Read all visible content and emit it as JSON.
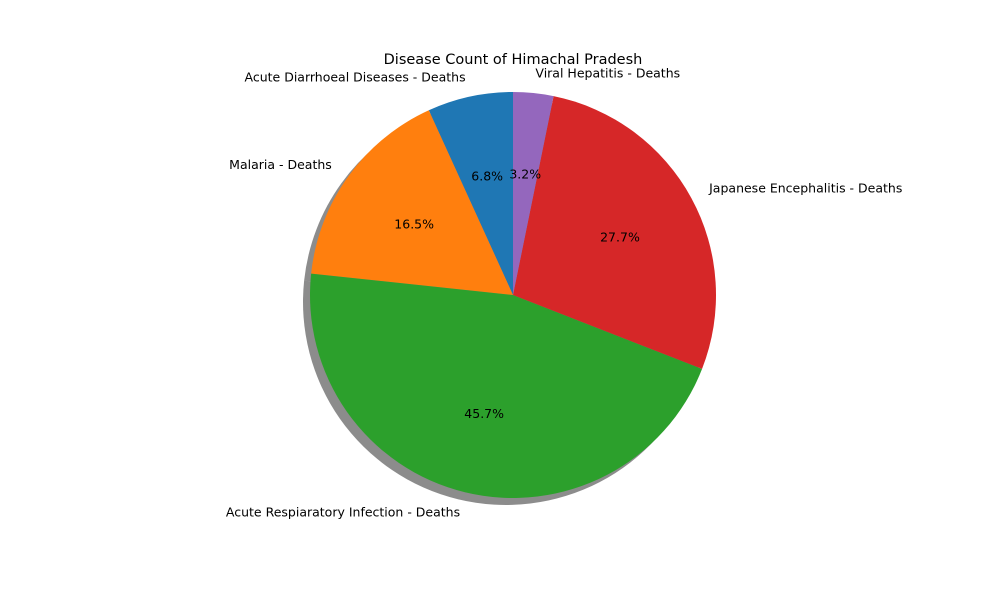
{
  "chart_data": {
    "type": "pie",
    "title": "Disease Count of Himachal Pradesh",
    "shadow": true,
    "start_angle_deg": 90,
    "direction": "counterclockwise",
    "slices": [
      {
        "label": "Acute Diarrhoeal Diseases - Deaths",
        "value": 6.8,
        "pct_label": "6.8%",
        "color": "#1f77b4"
      },
      {
        "label": "Malaria - Deaths",
        "value": 16.5,
        "pct_label": "16.5%",
        "color": "#ff7f0e"
      },
      {
        "label": "Acute Respiaratory Infection - Deaths",
        "value": 45.7,
        "pct_label": "45.7%",
        "color": "#2ca02c"
      },
      {
        "label": "Japanese Encephalitis - Deaths",
        "value": 27.7,
        "pct_label": "27.7%",
        "color": "#d62728"
      },
      {
        "label": "Viral Hepatitis - Deaths",
        "value": 3.2,
        "pct_label": "3.2%",
        "color": "#9467bd"
      }
    ]
  }
}
